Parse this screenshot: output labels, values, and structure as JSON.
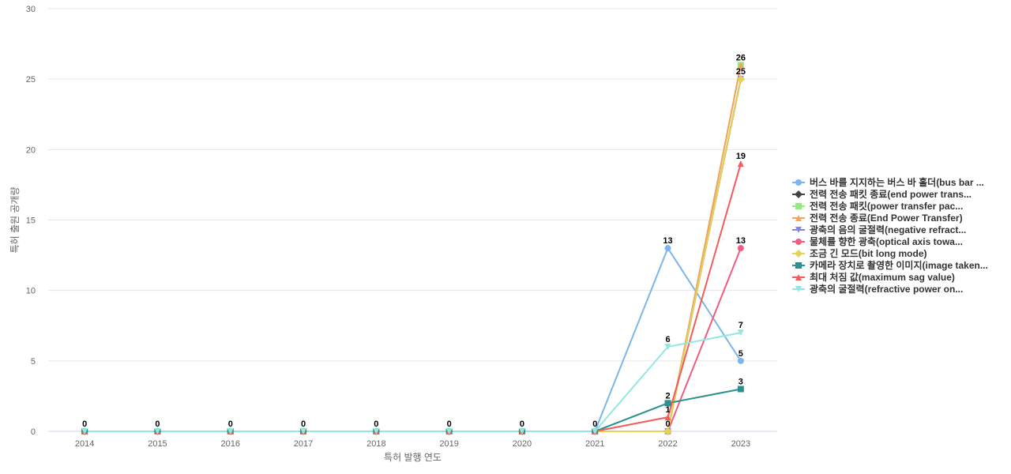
{
  "chart_data": {
    "type": "line",
    "title": "",
    "xlabel": "특허 발행 연도",
    "ylabel": "특허 출원 공개량",
    "x": [
      "2014",
      "2015",
      "2016",
      "2017",
      "2018",
      "2019",
      "2020",
      "2021",
      "2022",
      "2023"
    ],
    "ylim": [
      0,
      30
    ],
    "yticks": [
      0,
      5,
      10,
      15,
      20,
      25,
      30
    ],
    "grid": true,
    "legend_position": "right",
    "series": [
      {
        "name": "버스 바를 지지하는 버스 바 홀더(bus bar ...",
        "color": "#7cb5ec",
        "marker": "circle",
        "values": [
          0,
          0,
          0,
          0,
          0,
          0,
          0,
          0,
          13,
          5
        ]
      },
      {
        "name": "전력 전송 패킷 종료(end power trans...",
        "color": "#434348",
        "marker": "diamond",
        "values": [
          0,
          0,
          0,
          0,
          0,
          0,
          0,
          0,
          0,
          25
        ]
      },
      {
        "name": "전력 전송 패킷(power transfer pac...",
        "color": "#90ed7d",
        "marker": "square",
        "values": [
          0,
          0,
          0,
          0,
          0,
          0,
          0,
          0,
          0,
          26
        ]
      },
      {
        "name": "전력 전송 종료(End Power Transfer)",
        "color": "#f7a35c",
        "marker": "triangle",
        "values": [
          0,
          0,
          0,
          0,
          0,
          0,
          0,
          0,
          0,
          26
        ]
      },
      {
        "name": "광축의 음의 굴절력(negative refract...",
        "color": "#8085e9",
        "marker": "triangle-down",
        "values": [
          0,
          0,
          0,
          0,
          0,
          0,
          0,
          0,
          0,
          25
        ]
      },
      {
        "name": "물체를 향한 광축(optical axis towa...",
        "color": "#f15c80",
        "marker": "circle",
        "values": [
          0,
          0,
          0,
          0,
          0,
          0,
          0,
          0,
          0,
          13
        ]
      },
      {
        "name": "조금 긴 모드(bit long mode)",
        "color": "#e4d354",
        "marker": "diamond",
        "values": [
          0,
          0,
          0,
          0,
          0,
          0,
          0,
          0,
          0,
          25
        ]
      },
      {
        "name": "카메라 장치로 촬영한 이미지(image taken...",
        "color": "#2b908f",
        "marker": "square",
        "values": [
          0,
          0,
          0,
          0,
          0,
          0,
          0,
          0,
          2,
          3
        ]
      },
      {
        "name": "최대 처짐 값(maximum sag value)",
        "color": "#f45b5b",
        "marker": "triangle",
        "values": [
          0,
          0,
          0,
          0,
          0,
          0,
          0,
          0,
          1,
          19
        ]
      },
      {
        "name": "광축의 굴절력(refractive power on...",
        "color": "#91e8e1",
        "marker": "triangle-down",
        "values": [
          0,
          0,
          0,
          0,
          0,
          0,
          0,
          0,
          6,
          7
        ]
      }
    ],
    "data_labels": [
      {
        "x": "2014",
        "y": 0,
        "text": "0"
      },
      {
        "x": "2015",
        "y": 0,
        "text": "0"
      },
      {
        "x": "2016",
        "y": 0,
        "text": "0"
      },
      {
        "x": "2017",
        "y": 0,
        "text": "0"
      },
      {
        "x": "2018",
        "y": 0,
        "text": "0"
      },
      {
        "x": "2019",
        "y": 0,
        "text": "0"
      },
      {
        "x": "2020",
        "y": 0,
        "text": "0"
      },
      {
        "x": "2021",
        "y": 0,
        "text": "0"
      },
      {
        "x": "2022",
        "y": 13,
        "text": "13"
      },
      {
        "x": "2022",
        "y": 6,
        "text": "6"
      },
      {
        "x": "2022",
        "y": 2,
        "text": "2"
      },
      {
        "x": "2022",
        "y": 1,
        "text": "1"
      },
      {
        "x": "2022",
        "y": 0,
        "text": "0"
      },
      {
        "x": "2023",
        "y": 26,
        "text": "26"
      },
      {
        "x": "2023",
        "y": 25,
        "text": "25"
      },
      {
        "x": "2023",
        "y": 19,
        "text": "19"
      },
      {
        "x": "2023",
        "y": 13,
        "text": "13"
      },
      {
        "x": "2023",
        "y": 7,
        "text": "7"
      },
      {
        "x": "2023",
        "y": 5,
        "text": "5"
      },
      {
        "x": "2023",
        "y": 3,
        "text": "3"
      }
    ]
  }
}
